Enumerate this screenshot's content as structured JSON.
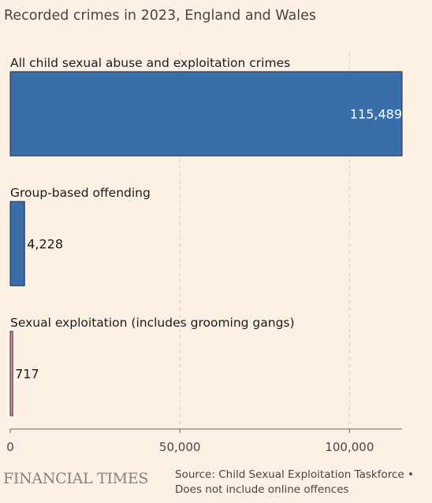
{
  "subtitle": "Recorded crimes in 2023, England and Wales",
  "colors": {
    "background": "#fdf1e6",
    "bar_primary": "#3a6ea8",
    "bar_highlight": "#e88fa6",
    "grid": "#d9cdc2"
  },
  "chart_data": {
    "type": "bar",
    "orientation": "horizontal",
    "title": "",
    "xlabel": "",
    "ylabel": "",
    "categories": [
      "All child sexual abuse and exploitation crimes",
      "Group-based offending",
      "Sexual exploitation (includes grooming gangs)"
    ],
    "values": [
      115489,
      4228,
      717
    ],
    "value_labels": [
      "115,489",
      "4,228",
      "717"
    ],
    "bar_colors": [
      "#3a6ea8",
      "#3a6ea8",
      "#e88fa6"
    ],
    "xlim": [
      0,
      115489
    ],
    "xticks": [
      0,
      50000,
      100000
    ],
    "xtick_labels": [
      "0",
      "50,000",
      "100,000"
    ],
    "grid": true
  },
  "footer": {
    "logo": "FINANCIAL TIMES",
    "source_line1": "Source: Child Sexual Exploitation Taskforce •",
    "source_line2": "Does not include online offences"
  }
}
